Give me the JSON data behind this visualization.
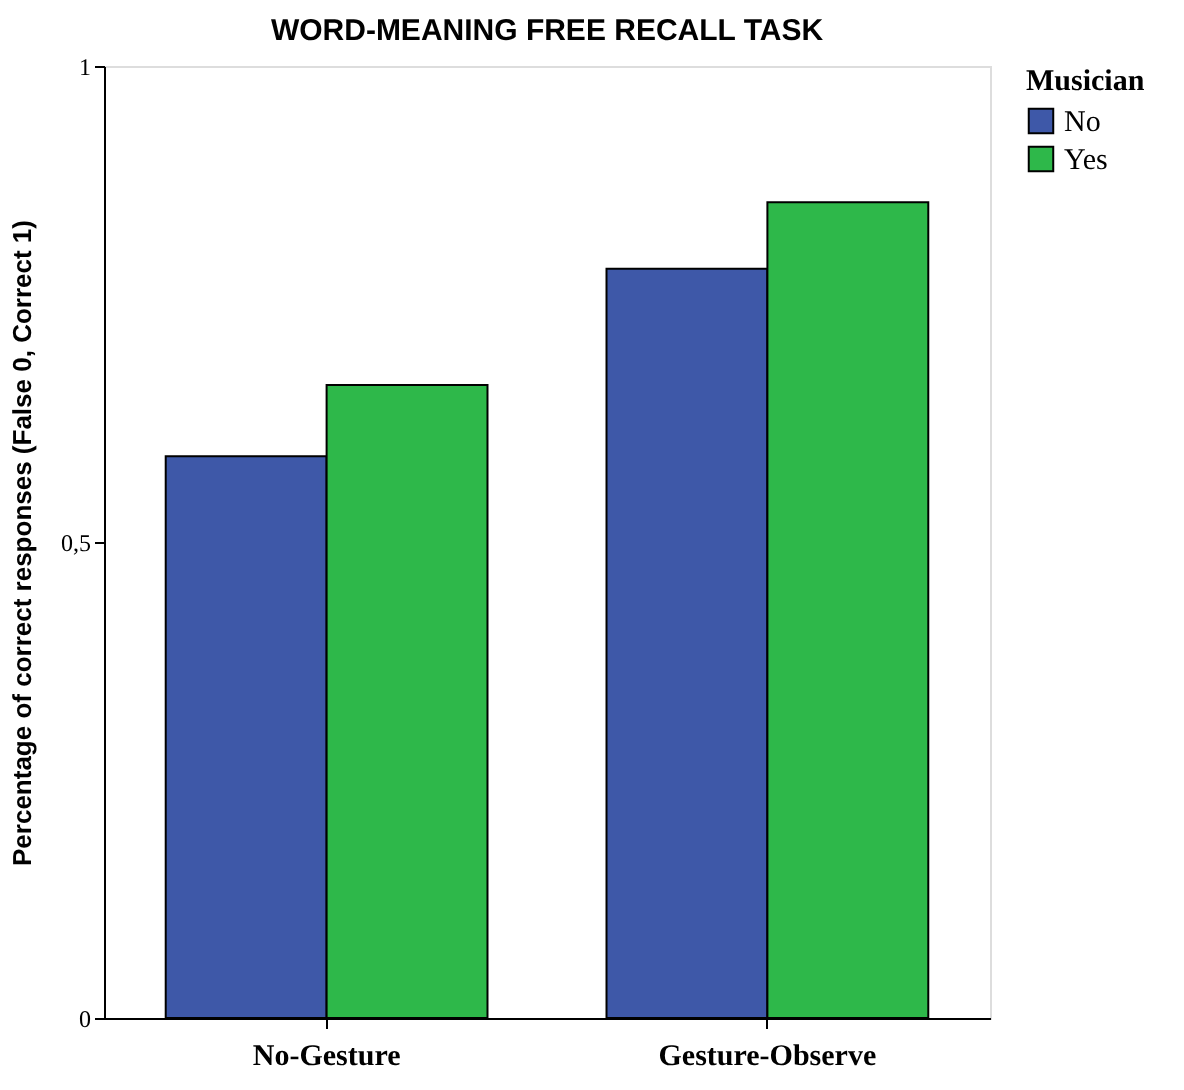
{
  "chart_data": {
    "type": "bar",
    "title": "WORD-MEANING FREE RECALL TASK",
    "ylabel": "Percentage of correct responses (False 0, Correct 1)",
    "legend_title": "Musician",
    "categories": [
      "No-Gesture",
      "Gesture-Observe"
    ],
    "series": [
      {
        "name": "No",
        "color": "#3e58a8",
        "values": [
          0.59,
          0.787
        ]
      },
      {
        "name": "Yes",
        "color": "#2eb84a",
        "values": [
          0.665,
          0.857
        ]
      }
    ],
    "ylim": [
      0,
      1
    ],
    "yticks": [
      0,
      {
        "value": 0.5,
        "label": "0,5"
      },
      1
    ],
    "grid": false,
    "legend": "top right"
  }
}
